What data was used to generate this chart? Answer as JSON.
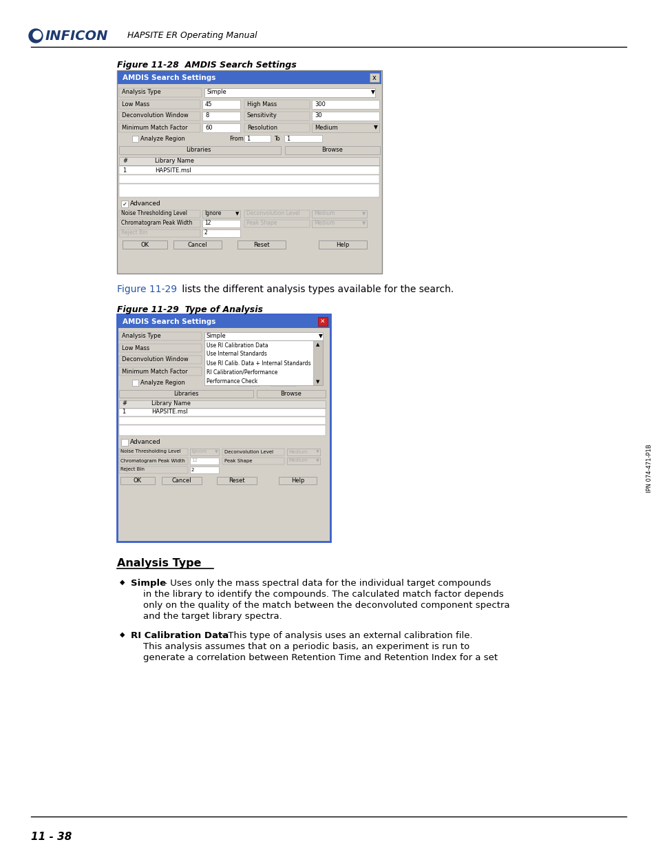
{
  "page_bg": "#ffffff",
  "header": {
    "logo_text": "INFICON",
    "subtitle": "HAPSITE ER Operating Manual",
    "logo_color": "#1e3a6e",
    "subtitle_color": "#000000"
  },
  "figure1": {
    "caption": "Figure 11-28  AMDIS Search Settings",
    "title": "AMDIS Search Settings",
    "title_bg": "#4169c8",
    "title_color": "#ffffff",
    "buttons": [
      "OK",
      "Cancel",
      "Reset",
      "Help"
    ]
  },
  "figure2": {
    "caption": "Figure 11-29  Type of Analysis",
    "title": "AMDIS Search Settings",
    "title_bg": "#4169c8",
    "title_color": "#ffffff",
    "dropdown_items": [
      "Use RI Calibration Data",
      "Use Internal Standards",
      "Use RI Calib. Data + Internal Standards",
      "RI Calibration/Performance",
      "Performance Check"
    ]
  },
  "intro_bold": "Figure 11-29",
  "intro_rest": " lists the different analysis types available for the search.",
  "section_heading": "Analysis Type",
  "bullet1_bold": "Simple",
  "bullet1_rest": " - Uses only the mass spectral data for the individual target compounds",
  "bullet1_line2": "in the library to identify the compounds. The calculated match factor depends",
  "bullet1_line3": "only on the quality of the match between the deconvoluted component spectra",
  "bullet1_line4": "and the target library spectra.",
  "bullet2_bold": "RI Calibration Data",
  "bullet2_rest": " - This type of analysis uses an external calibration file.",
  "bullet2_line2": "This analysis assumes that on a periodic basis, an experiment is run to",
  "bullet2_line3": "generate a correlation between Retention Time and Retention Index for a set",
  "footer_line": true,
  "page_number": "11 - 38",
  "side_text": "IPN 074-471-P1B",
  "dlg_bg": "#d4d0c8",
  "field_bg": "#d4d0c8",
  "white": "#ffffff",
  "border_color": "#999999",
  "grey_text": "#aaaaaa"
}
